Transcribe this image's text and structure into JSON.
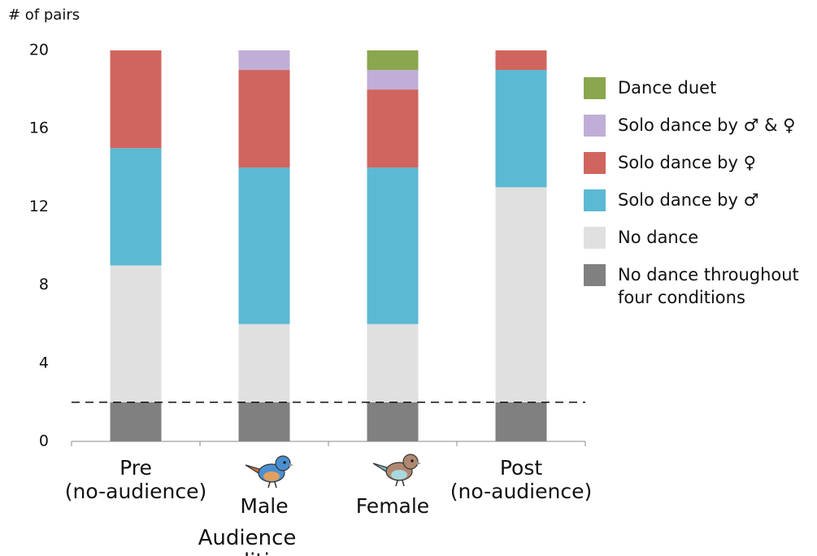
{
  "chart_data": {
    "type": "stacked_bar",
    "y_label": "# of pairs",
    "x_label": "Audience condition",
    "categories": [
      "Pre\n(no-audience)",
      "Male",
      "Female",
      "Post\n(no-audience)"
    ],
    "series": [
      {
        "name": "No dance throughout four conditions",
        "color": "#808080",
        "values": [
          2,
          2,
          2,
          2
        ]
      },
      {
        "name": "No dance",
        "color": "#e0e0e0",
        "values": [
          7,
          4,
          4,
          11
        ]
      },
      {
        "name": "Solo dance by ♂",
        "color": "#5bb9d3",
        "values": [
          6,
          8,
          8,
          6
        ]
      },
      {
        "name": "Solo dance by ♀",
        "color": "#d0655f",
        "values": [
          5,
          5,
          4,
          1
        ]
      },
      {
        "name": "Solo dance by ♂ & ♀",
        "color": "#c0aed6",
        "values": [
          0,
          1,
          1,
          0
        ]
      },
      {
        "name": "Dance duet",
        "color": "#8aa64e",
        "values": [
          0,
          0,
          1,
          0
        ]
      }
    ],
    "reference_line": 2,
    "ylim": [
      0,
      20
    ],
    "yticks": [
      0,
      4,
      8,
      12,
      16,
      20
    ]
  }
}
